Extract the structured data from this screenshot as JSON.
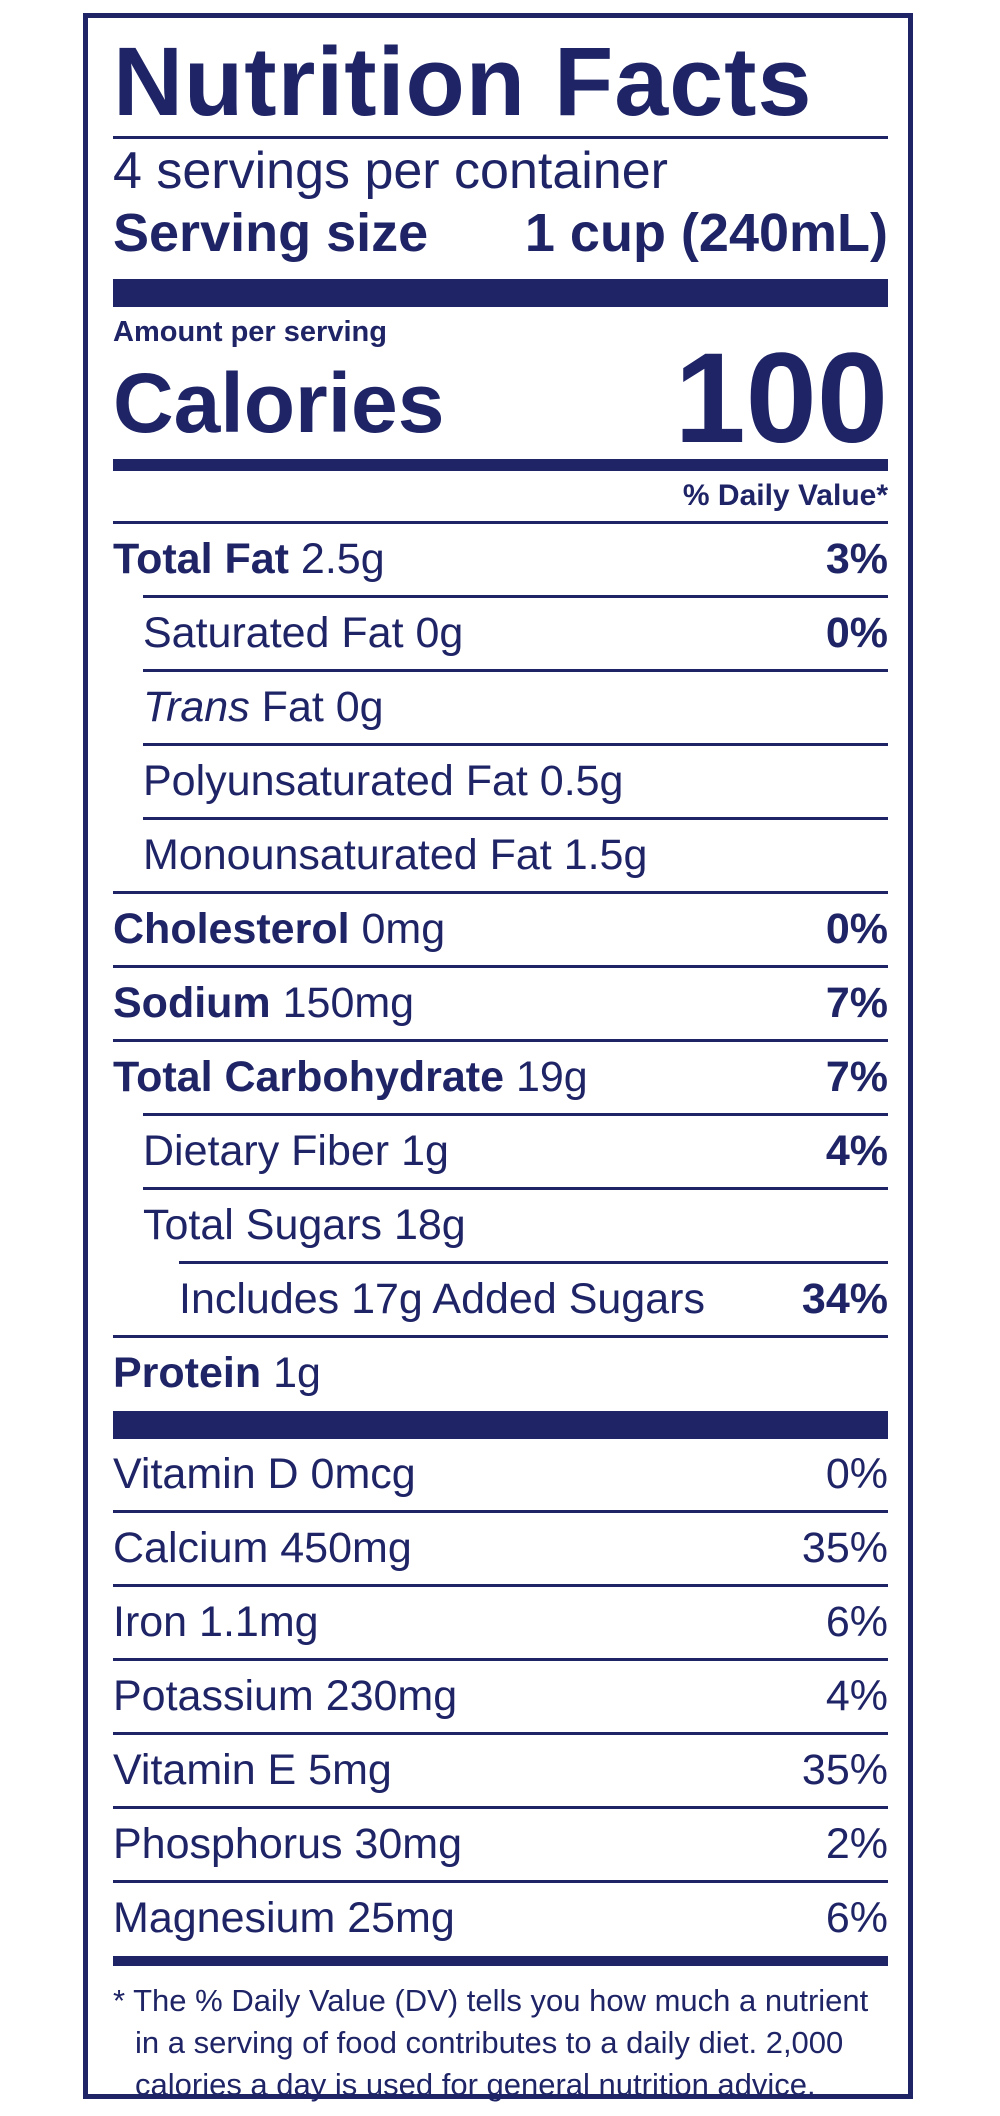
{
  "label": {
    "title": "Nutrition Facts",
    "servings_per_container": "4 servings per container",
    "serving_size_label": "Serving size",
    "serving_size_value": "1 cup (240mL)",
    "amount_per_serving": "Amount per serving",
    "calories_label": "Calories",
    "calories_value": "100",
    "daily_value_header": "% Daily Value*"
  },
  "nutrients": [
    {
      "name_bold": "Total Fat",
      "name": " 2.5g",
      "pct": "3%"
    },
    {
      "name": "Saturated Fat 0g",
      "pct": "0%"
    },
    {
      "name_italic": "Trans",
      "name": " Fat 0g",
      "pct": ""
    },
    {
      "name": "Polyunsaturated Fat 0.5g",
      "pct": ""
    },
    {
      "name": "Monounsaturated Fat 1.5g",
      "pct": ""
    },
    {
      "name_bold": "Cholesterol",
      "name": " 0mg",
      "pct": "0%"
    },
    {
      "name_bold": "Sodium",
      "name": " 150mg",
      "pct": "7%"
    },
    {
      "name_bold": "Total Carbohydrate",
      "name": " 19g",
      "pct": "7%"
    },
    {
      "name": "Dietary Fiber 1g",
      "pct": "4%"
    },
    {
      "name": "Total Sugars 18g",
      "pct": ""
    },
    {
      "name": "Includes 17g Added Sugars",
      "pct": "34%"
    },
    {
      "name_bold": "Protein",
      "name": " 1g",
      "pct": ""
    }
  ],
  "vitamins": [
    {
      "name": "Vitamin D 0mcg",
      "pct": "0%"
    },
    {
      "name": "Calcium 450mg",
      "pct": "35%"
    },
    {
      "name": "Iron 1.1mg",
      "pct": "6%"
    },
    {
      "name": "Potassium 230mg",
      "pct": "4%"
    },
    {
      "name": "Vitamin E 5mg",
      "pct": "35%"
    },
    {
      "name": "Phosphorus 30mg",
      "pct": "2%"
    },
    {
      "name": "Magnesium 25mg",
      "pct": "6%"
    }
  ],
  "footnote": "* The % Daily Value (DV) tells you how much a nutrient in a serving of food contributes to a daily diet. 2,000 calories a day is used for general nutrition advice.",
  "colors": {
    "ink": "#1e2466",
    "background": "#ffffff"
  }
}
